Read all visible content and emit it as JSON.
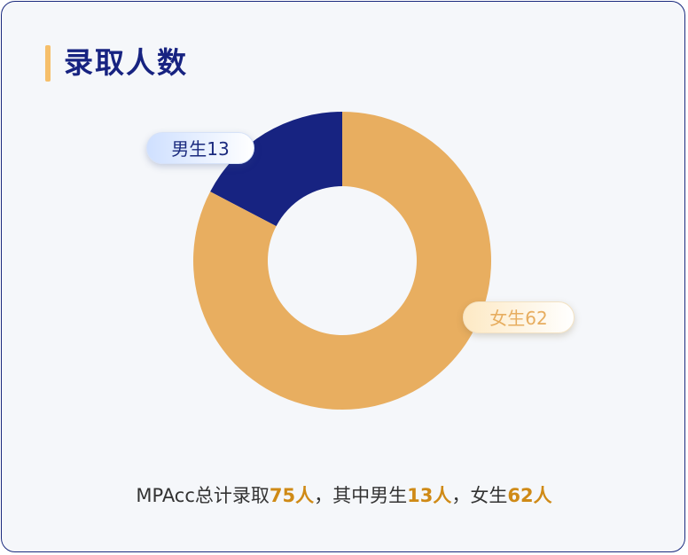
{
  "title": "录取人数",
  "chart_data": {
    "type": "pie",
    "style": "donut",
    "title": "录取人数",
    "categories": [
      "男生",
      "女生"
    ],
    "values": [
      13,
      62
    ],
    "data_labels": [
      "男生13",
      "女生62"
    ],
    "colors": {
      "男生": "#172381",
      "女生": "#e8ae60"
    }
  },
  "summary": {
    "prefix": "MPAcc总计录取",
    "total": "75人",
    "sep1": "，其中男生",
    "male": "13人",
    "sep2": "，女生",
    "female": "62人"
  }
}
